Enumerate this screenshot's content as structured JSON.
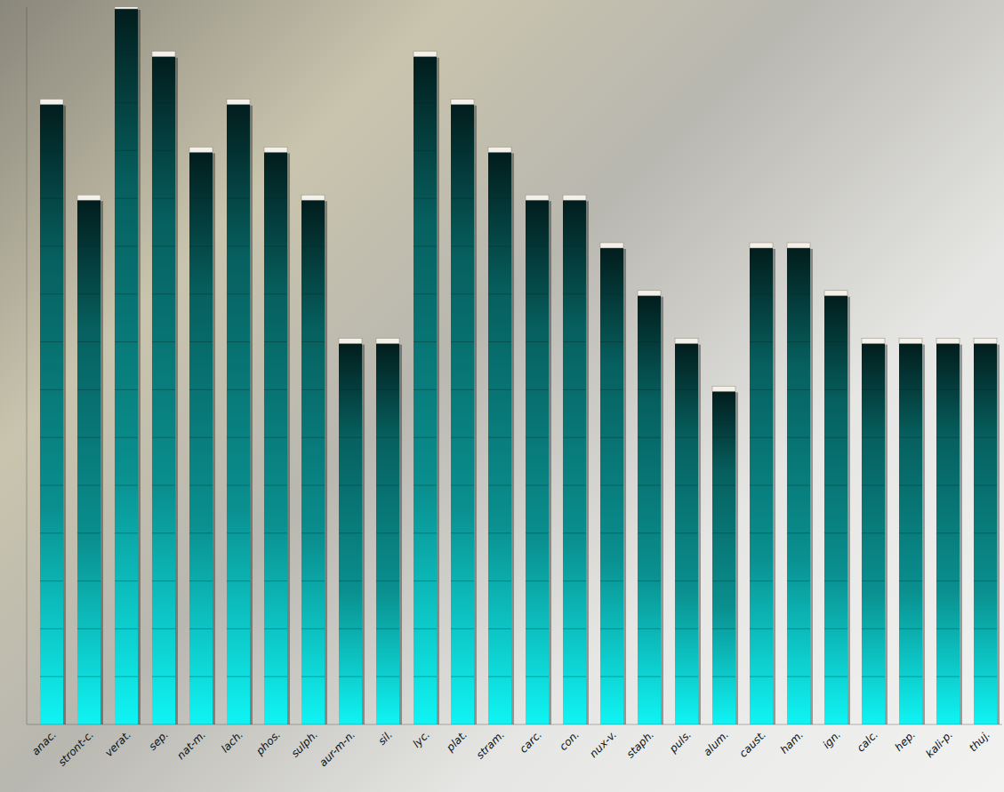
{
  "chart_data": {
    "type": "bar",
    "categories": [
      "anac.",
      "stront-c.",
      "verat.",
      "sep.",
      "nat-m.",
      "lach.",
      "phos.",
      "sulph.",
      "aur-m-n.",
      "sil.",
      "lyc.",
      "plat.",
      "stram.",
      "carc.",
      "con.",
      "nux-v.",
      "staph.",
      "puls.",
      "alum.",
      "caust.",
      "ham.",
      "ign.",
      "calc.",
      "hep.",
      "kali-p.",
      "thuj."
    ],
    "values": [
      13,
      11,
      15,
      14,
      12,
      13,
      12,
      11,
      8,
      8,
      14,
      13,
      12,
      11,
      11,
      10,
      9,
      8,
      7,
      10,
      10,
      9,
      8,
      8,
      8,
      8
    ],
    "color": "#0a8f8f",
    "ylim": [
      0,
      15
    ],
    "grid": false,
    "tick_labels": "x"
  }
}
